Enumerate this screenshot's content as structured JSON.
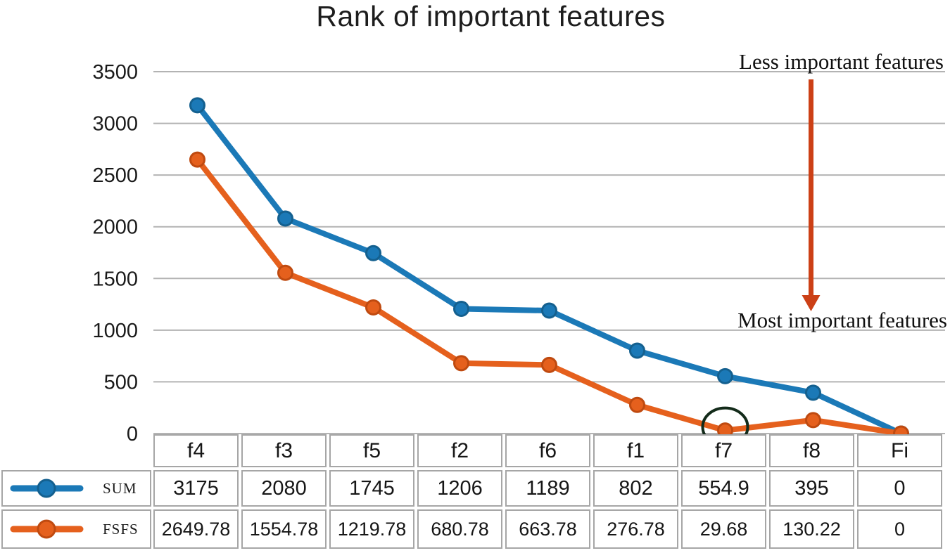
{
  "title": "Rank of important features",
  "annotations": {
    "less_important": "Less important features",
    "most_important": "Most important features"
  },
  "colors": {
    "sum": "#1b79b7",
    "sum_dark": "#14608f",
    "fsfs": "#e5601d",
    "fsfs_dark": "#bf4a10",
    "arrow": "#cc4016",
    "grid": "#b3b3b3",
    "table_border": "#a6a6a6",
    "circle_annotation": "#132b1a",
    "text": "#1a1a1a"
  },
  "chart_data": {
    "type": "line",
    "title": "Rank of important features",
    "categories": [
      "f4",
      "f3",
      "f5",
      "f2",
      "f6",
      "f1",
      "f7",
      "f8",
      "Fi"
    ],
    "series": [
      {
        "name": "SUM",
        "color_key": "sum",
        "values": [
          3175,
          2080,
          1745,
          1206,
          1189,
          802,
          554.9,
          395,
          0
        ]
      },
      {
        "name": "FSFS",
        "color_key": "fsfs",
        "values": [
          2649.78,
          1554.78,
          1219.78,
          680.78,
          663.78,
          276.78,
          29.68,
          130.22,
          0
        ]
      }
    ],
    "ylim": [
      0,
      3500
    ],
    "yticks": [
      3500,
      3000,
      2500,
      2000,
      1500,
      1000,
      500,
      0
    ],
    "grid": true,
    "legend_position": "table-left",
    "circled_point": {
      "series": "FSFS",
      "category": "f7"
    },
    "arrow_annotation": {
      "from_label": "Less important features",
      "to_label": "Most important features",
      "at_category": "f8"
    }
  },
  "table": {
    "header": [
      "f4",
      "f3",
      "f5",
      "f2",
      "f6",
      "f1",
      "f7",
      "f8",
      "Fi"
    ],
    "rows": [
      {
        "label": "SUM",
        "values": [
          "3175",
          "2080",
          "1745",
          "1206",
          "1189",
          "802",
          "554.9",
          "395",
          "0"
        ]
      },
      {
        "label": "FSFS",
        "values": [
          "2649.78",
          "1554.78",
          "1219.78",
          "680.78",
          "663.78",
          "276.78",
          "29.68",
          "130.22",
          "0"
        ]
      }
    ]
  }
}
